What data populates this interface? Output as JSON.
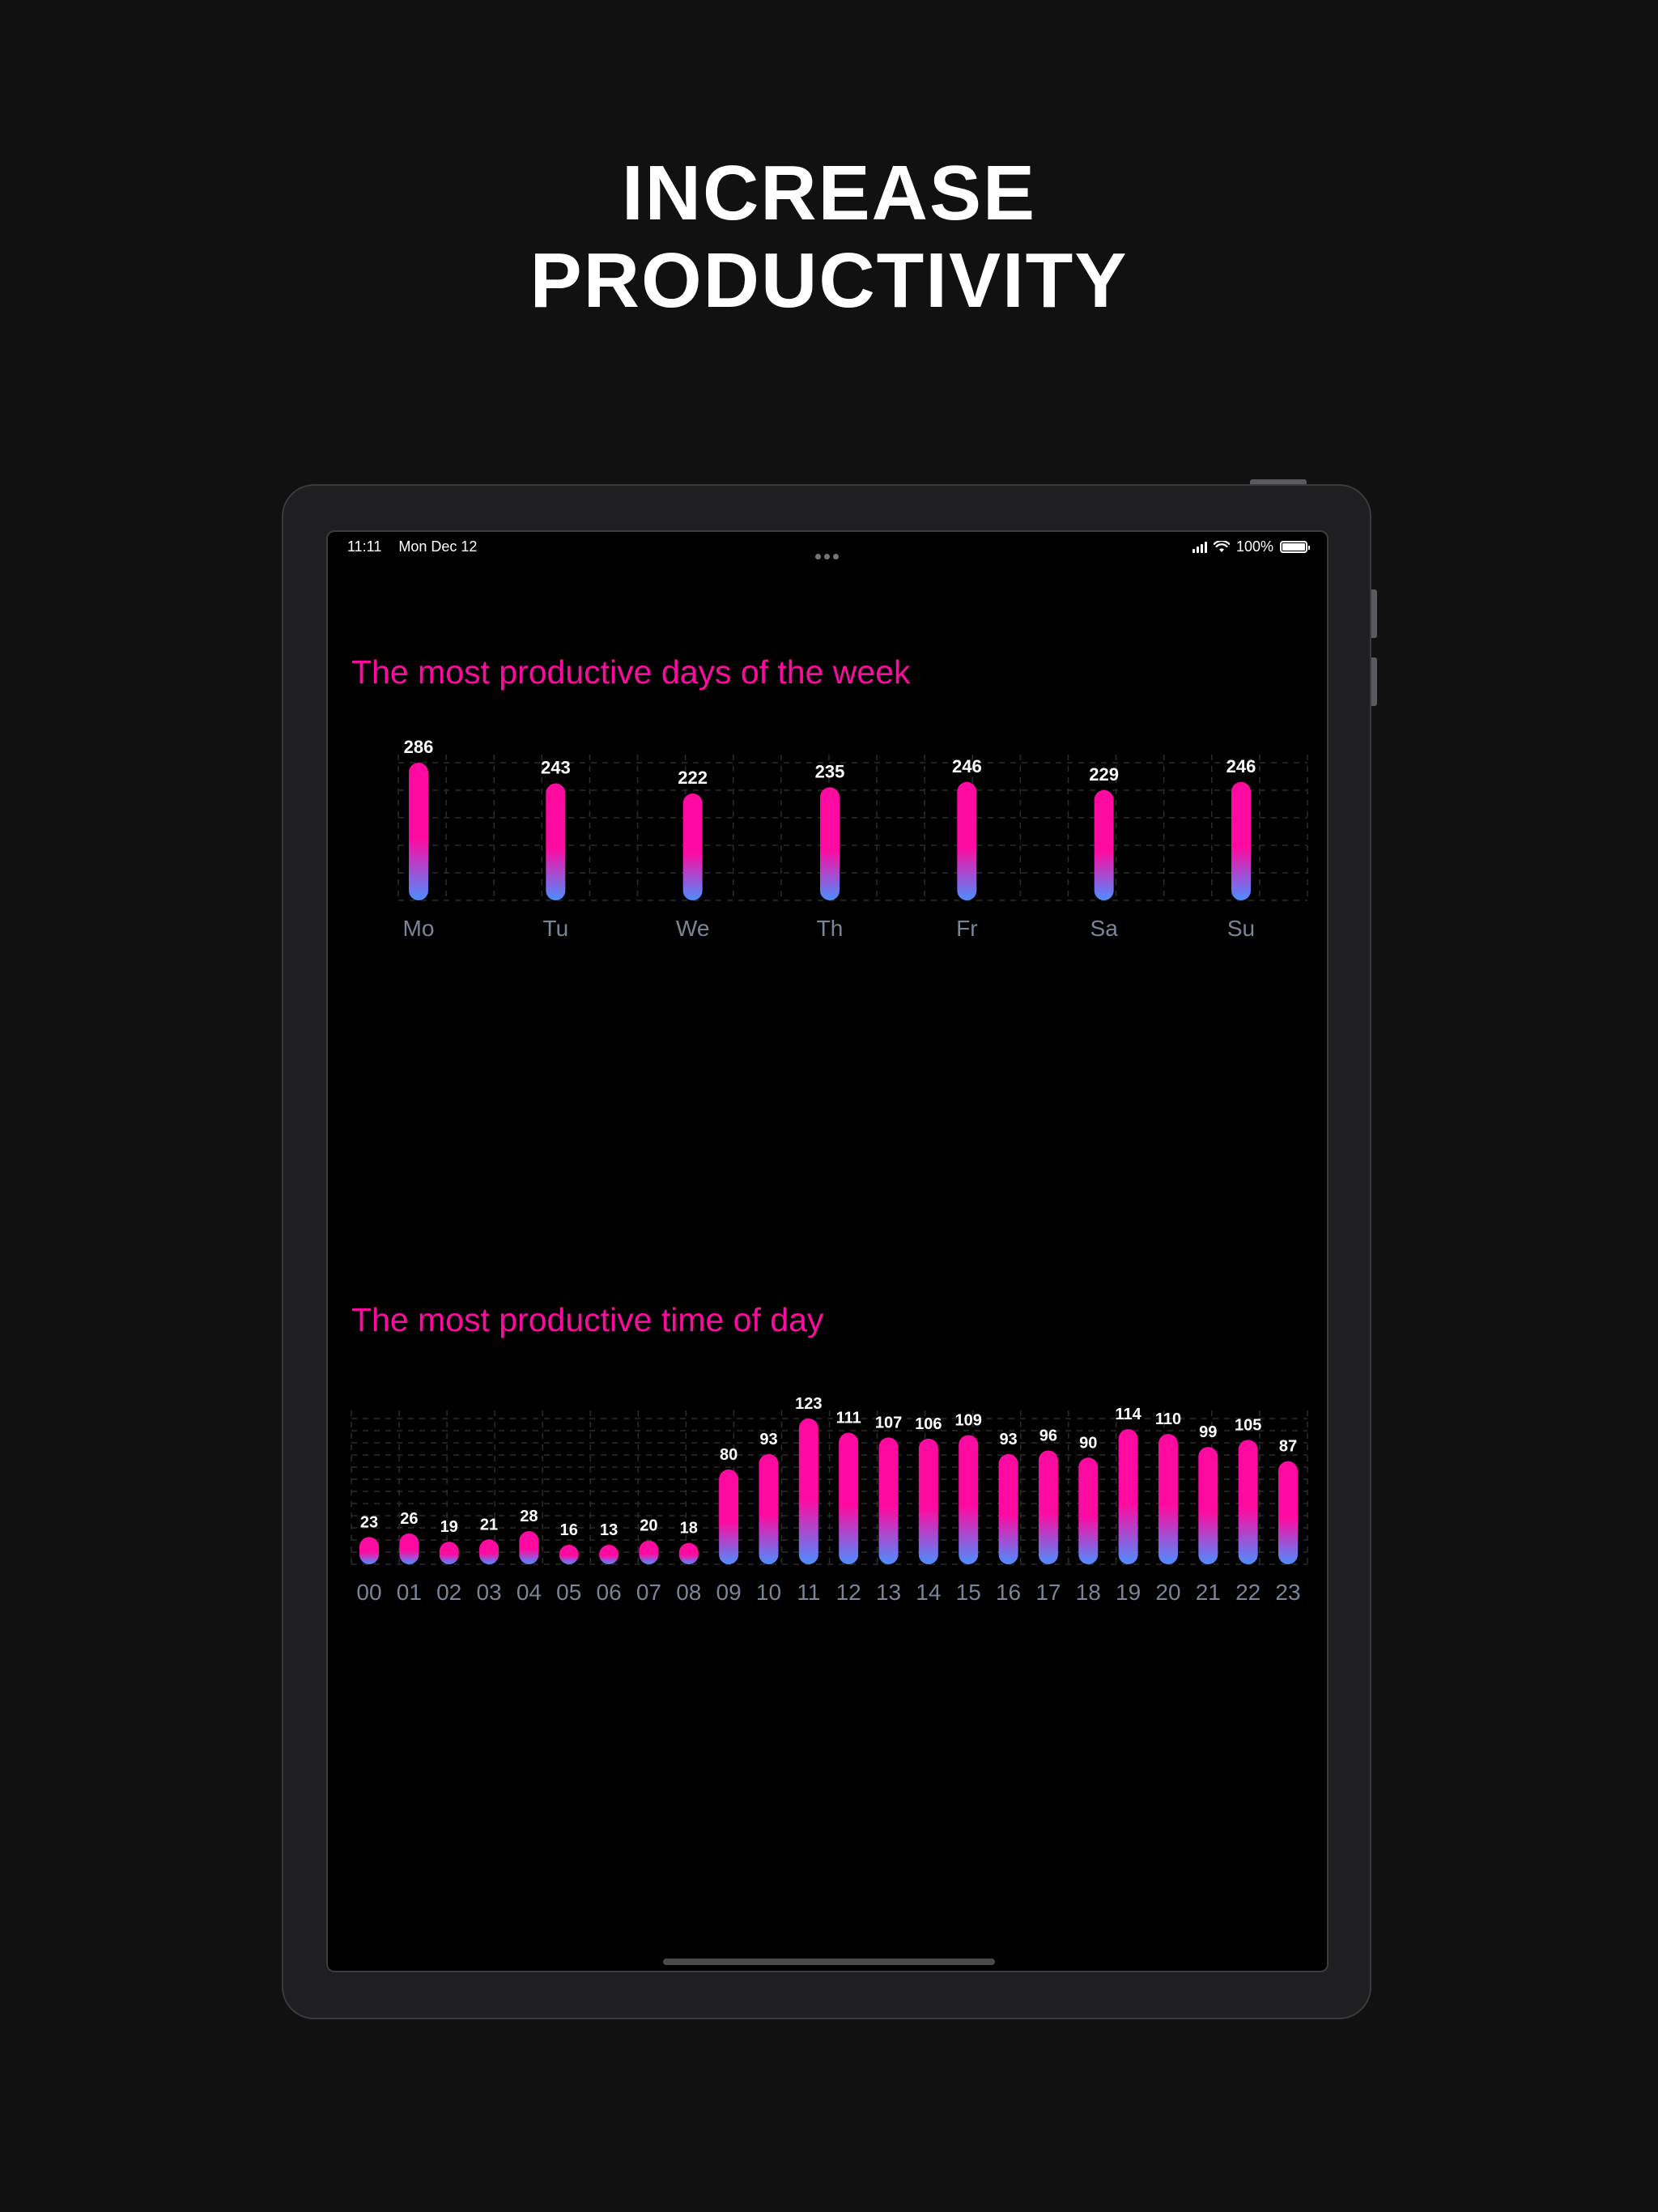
{
  "headline": {
    "line1": "INCREASE",
    "line2": "PRODUCTIVITY"
  },
  "status_bar": {
    "time": "11:11",
    "date": "Mon Dec 12",
    "battery": "100%"
  },
  "colors": {
    "accent": "#ff0aa0",
    "bar_bottom": "#4d8dff",
    "axis_label": "#7a8598",
    "background": "#000000"
  },
  "chart_data": [
    {
      "type": "bar",
      "title": "The most productive days of the week",
      "categories": [
        "Mo",
        "Tu",
        "We",
        "Th",
        "Fr",
        "Sa",
        "Su"
      ],
      "values": [
        286,
        243,
        222,
        235,
        246,
        229,
        246
      ],
      "ylim": [
        0,
        286
      ],
      "grid": true,
      "xlabel": "",
      "ylabel": ""
    },
    {
      "type": "bar",
      "title": "The most productive time of day",
      "categories": [
        "00",
        "01",
        "02",
        "03",
        "04",
        "05",
        "06",
        "07",
        "08",
        "09",
        "10",
        "11",
        "12",
        "13",
        "14",
        "15",
        "16",
        "17",
        "18",
        "19",
        "20",
        "21",
        "22",
        "23"
      ],
      "values": [
        23,
        26,
        19,
        21,
        28,
        16,
        13,
        20,
        18,
        80,
        93,
        123,
        111,
        107,
        106,
        109,
        93,
        96,
        90,
        114,
        110,
        99,
        105,
        87
      ],
      "ylim": [
        0,
        123
      ],
      "grid": true,
      "xlabel": "",
      "ylabel": ""
    }
  ]
}
